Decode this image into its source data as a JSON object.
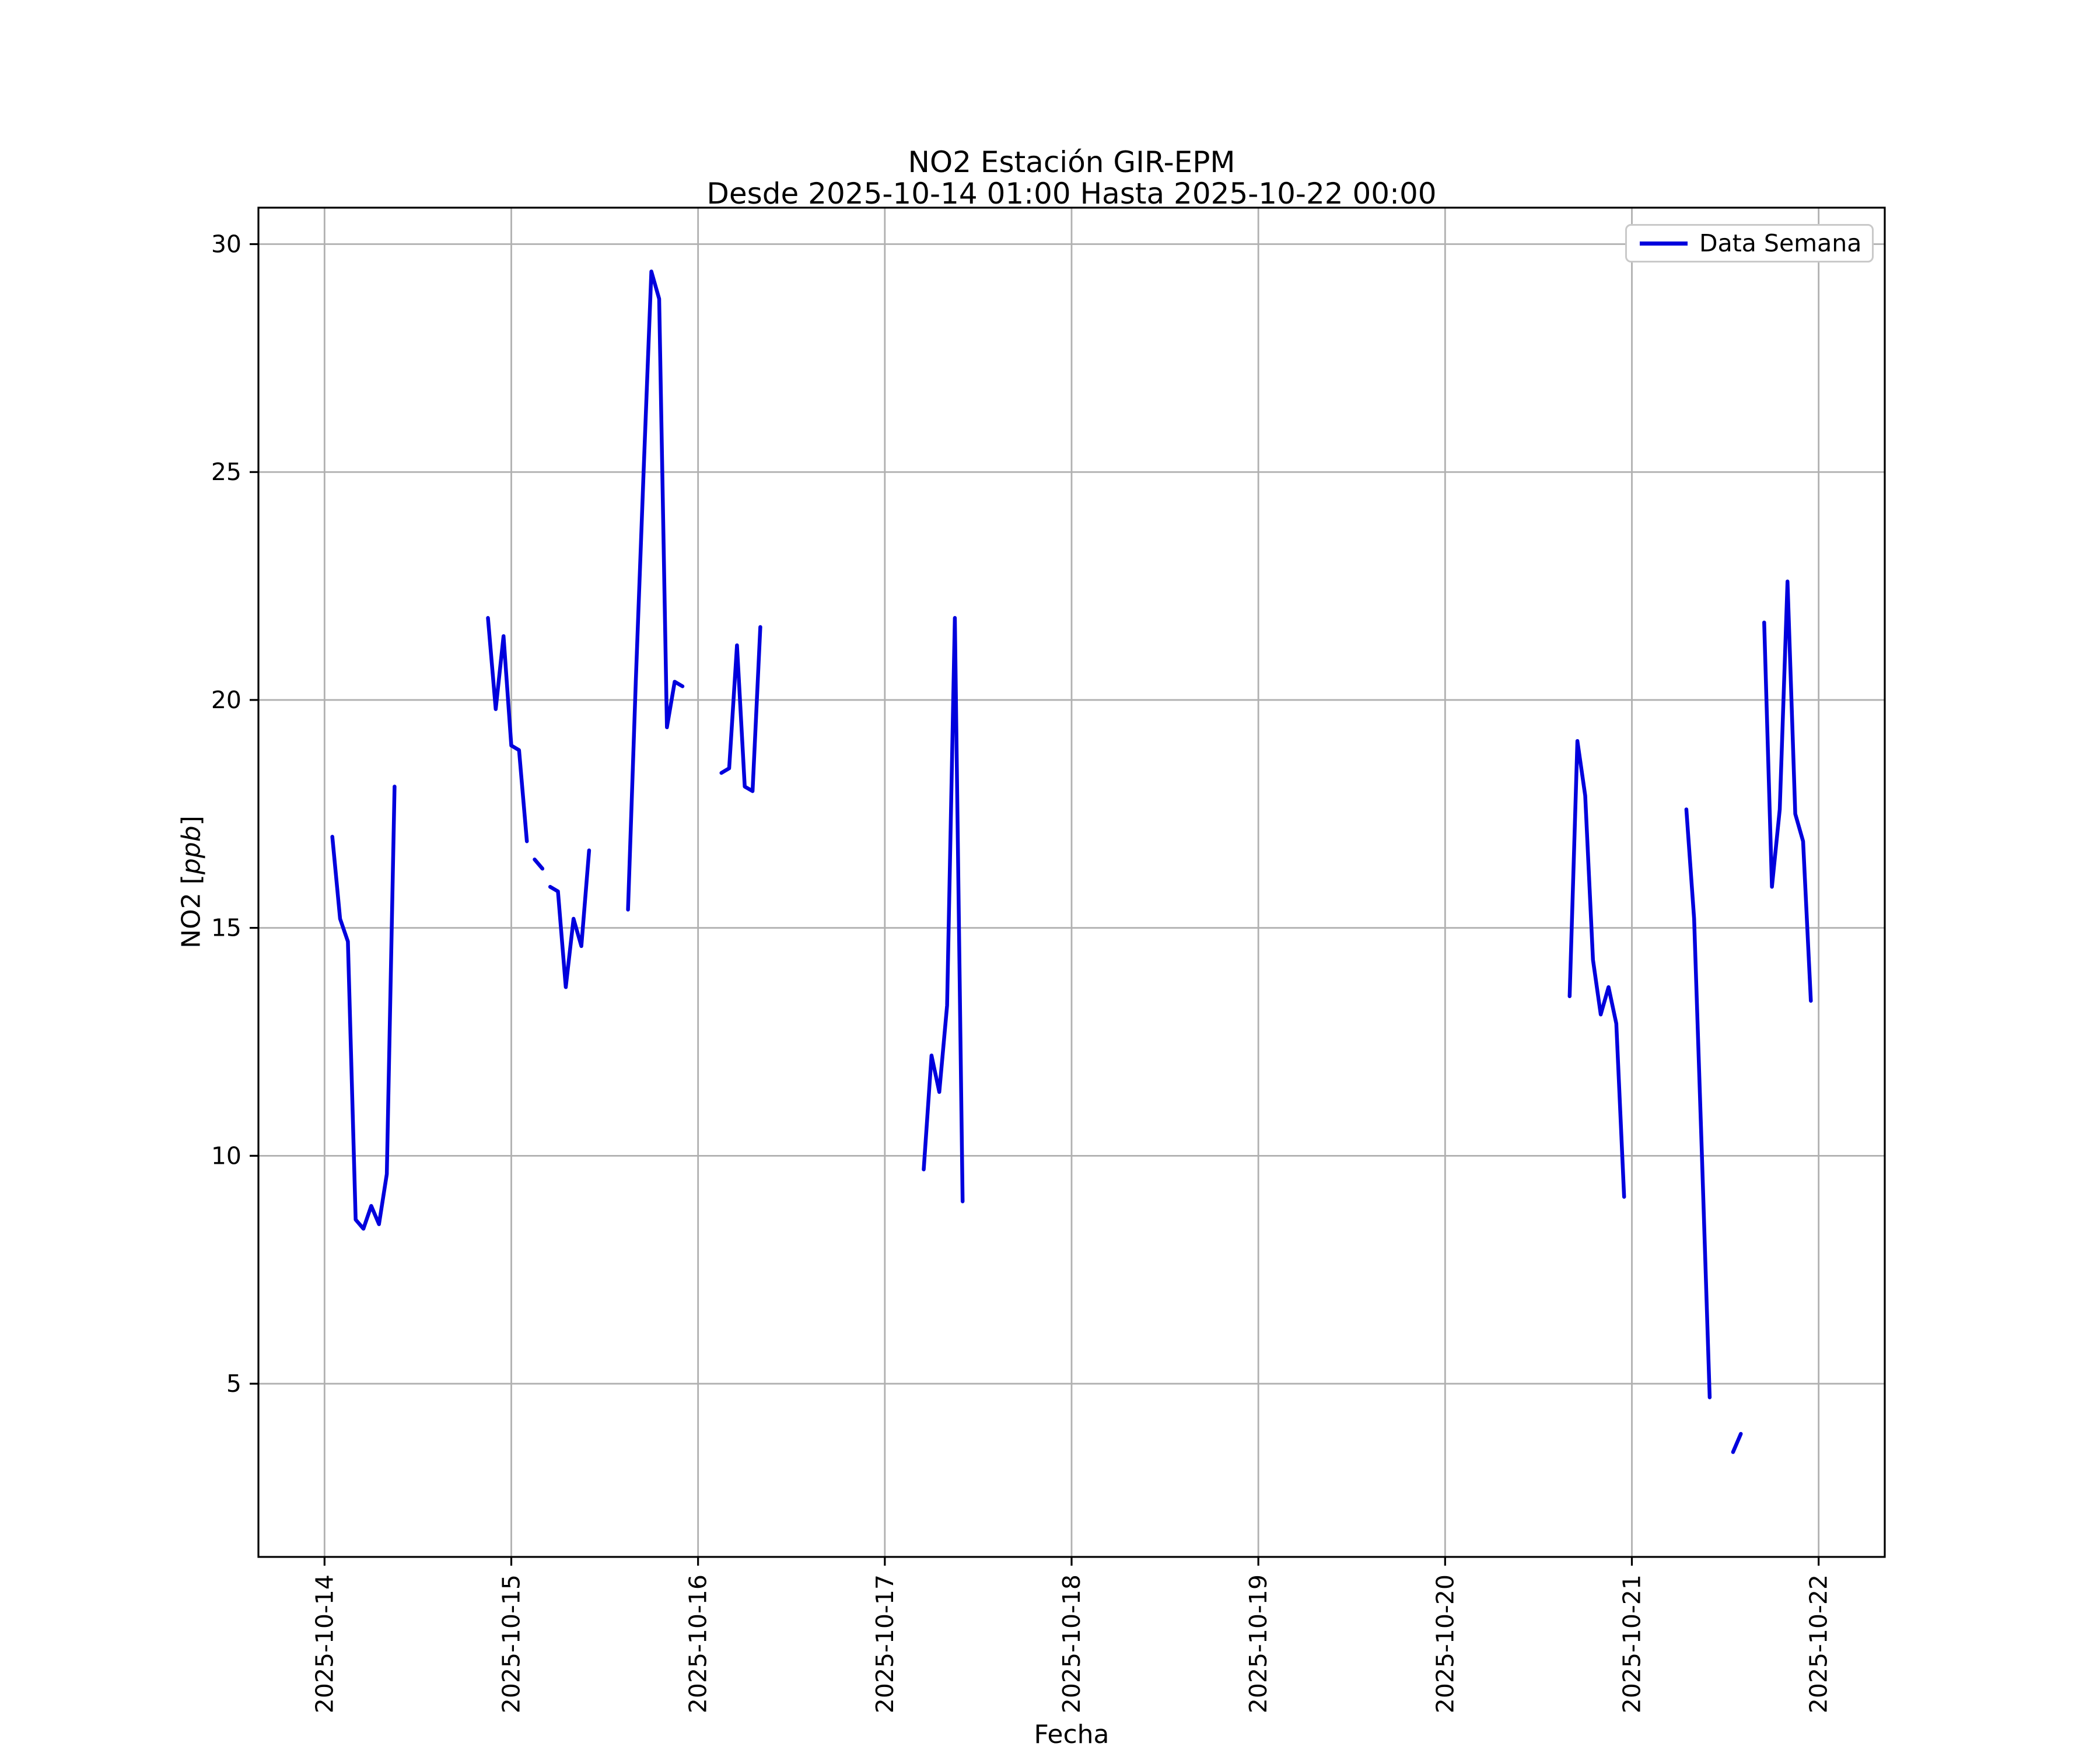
{
  "chart_data": {
    "type": "line",
    "title": "NO2 Estación GIR-EPM",
    "subtitle": "Desde 2025-10-14 01:00 Hasta 2025-10-22 00:00",
    "xlabel": "Fecha",
    "ylabel": {
      "prefix": "NO2 [",
      "italic": "ppb",
      "suffix": "]"
    },
    "legend": {
      "label": "Data Semana",
      "position": "upper right"
    },
    "style": {
      "line_color": "#0000dd",
      "grid_color": "#b0b0b0",
      "axis_color": "#000000",
      "background": "#ffffff"
    },
    "grid": true,
    "x_base_date": "2025-10-14",
    "xlim_days": [
      -0.354,
      8.354
    ],
    "ylim": [
      1.2,
      30.8
    ],
    "x_ticks": [
      "2025-10-14",
      "2025-10-15",
      "2025-10-16",
      "2025-10-17",
      "2025-10-18",
      "2025-10-19",
      "2025-10-20",
      "2025-10-21",
      "2025-10-22"
    ],
    "y_ticks": [
      5,
      10,
      15,
      20,
      25,
      30
    ],
    "series": [
      {
        "name": "Data Semana",
        "segments": [
          [
            [
              "2025-10-14T01:00",
              17.0
            ],
            [
              "2025-10-14T02:00",
              15.2
            ],
            [
              "2025-10-14T03:00",
              14.7
            ],
            [
              "2025-10-14T04:00",
              8.6
            ],
            [
              "2025-10-14T05:00",
              8.4
            ],
            [
              "2025-10-14T06:00",
              8.9
            ],
            [
              "2025-10-14T07:00",
              8.5
            ],
            [
              "2025-10-14T08:00",
              9.6
            ],
            [
              "2025-10-14T09:00",
              18.1
            ]
          ],
          [
            [
              "2025-10-14T21:00",
              21.8
            ],
            [
              "2025-10-14T22:00",
              19.8
            ],
            [
              "2025-10-14T23:00",
              21.4
            ],
            [
              "2025-10-15T00:00",
              19.0
            ],
            [
              "2025-10-15T01:00",
              18.9
            ],
            [
              "2025-10-15T02:00",
              16.9
            ]
          ],
          [
            [
              "2025-10-15T03:00",
              16.5
            ],
            [
              "2025-10-15T04:00",
              16.3
            ]
          ],
          [
            [
              "2025-10-15T05:00",
              15.9
            ],
            [
              "2025-10-15T06:00",
              15.8
            ],
            [
              "2025-10-15T07:00",
              13.7
            ],
            [
              "2025-10-15T08:00",
              15.2
            ],
            [
              "2025-10-15T09:00",
              14.6
            ],
            [
              "2025-10-15T10:00",
              16.7
            ]
          ],
          [
            [
              "2025-10-15T15:00",
              15.4
            ],
            [
              "2025-10-15T16:00",
              20.4
            ],
            [
              "2025-10-15T17:00",
              25.0
            ],
            [
              "2025-10-15T18:00",
              29.4
            ],
            [
              "2025-10-15T19:00",
              28.8
            ],
            [
              "2025-10-15T20:00",
              19.4
            ],
            [
              "2025-10-15T21:00",
              20.4
            ],
            [
              "2025-10-15T22:00",
              20.3
            ]
          ],
          [
            [
              "2025-10-16T03:00",
              18.4
            ],
            [
              "2025-10-16T04:00",
              18.5
            ],
            [
              "2025-10-16T05:00",
              21.2
            ],
            [
              "2025-10-16T06:00",
              18.1
            ],
            [
              "2025-10-16T07:00",
              18.0
            ],
            [
              "2025-10-16T08:00",
              21.6
            ]
          ],
          [
            [
              "2025-10-17T05:00",
              9.7
            ],
            [
              "2025-10-17T06:00",
              12.2
            ],
            [
              "2025-10-17T07:00",
              11.4
            ],
            [
              "2025-10-17T08:00",
              13.3
            ],
            [
              "2025-10-17T09:00",
              21.8
            ],
            [
              "2025-10-17T10:00",
              9.0
            ]
          ],
          [
            [
              "2025-10-20T16:00",
              13.5
            ],
            [
              "2025-10-20T17:00",
              19.1
            ],
            [
              "2025-10-20T18:00",
              17.9
            ],
            [
              "2025-10-20T19:00",
              14.3
            ],
            [
              "2025-10-20T20:00",
              13.1
            ],
            [
              "2025-10-20T21:00",
              13.7
            ],
            [
              "2025-10-20T22:00",
              12.9
            ],
            [
              "2025-10-20T23:00",
              9.1
            ]
          ],
          [
            [
              "2025-10-21T07:00",
              17.6
            ],
            [
              "2025-10-21T08:00",
              15.2
            ],
            [
              "2025-10-21T09:00",
              10.0
            ],
            [
              "2025-10-21T10:00",
              4.7
            ]
          ],
          [
            [
              "2025-10-21T13:00",
              3.5
            ],
            [
              "2025-10-21T14:00",
              3.9
            ]
          ],
          [
            [
              "2025-10-21T17:00",
              21.7
            ],
            [
              "2025-10-21T18:00",
              15.9
            ],
            [
              "2025-10-21T19:00",
              17.6
            ],
            [
              "2025-10-21T20:00",
              22.6
            ],
            [
              "2025-10-21T21:00",
              17.5
            ],
            [
              "2025-10-21T22:00",
              16.9
            ],
            [
              "2025-10-21T23:00",
              13.4
            ]
          ]
        ]
      }
    ]
  }
}
